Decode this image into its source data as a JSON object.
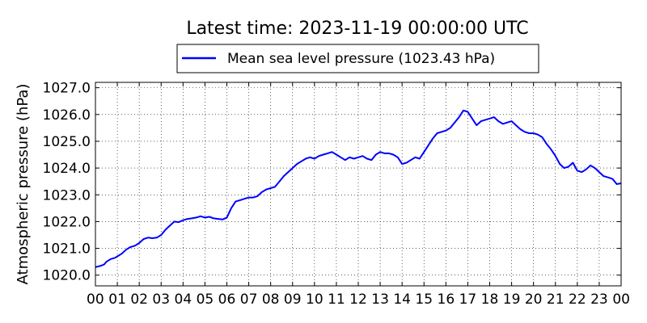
{
  "chart_data": {
    "type": "line",
    "title": "Latest time: 2023-11-19 00:00:00 UTC",
    "ylabel": "Atmospheric pressure (hPa)",
    "xlabel": "",
    "ylim": [
      1019.6,
      1027.2
    ],
    "xlim": [
      0,
      24
    ],
    "grid": true,
    "legend_position": "top-center",
    "x_ticks": [
      {
        "x": 0,
        "label": "00"
      },
      {
        "x": 1,
        "label": "01"
      },
      {
        "x": 2,
        "label": "02"
      },
      {
        "x": 3,
        "label": "03"
      },
      {
        "x": 4,
        "label": "04"
      },
      {
        "x": 5,
        "label": "05"
      },
      {
        "x": 6,
        "label": "06"
      },
      {
        "x": 7,
        "label": "07"
      },
      {
        "x": 8,
        "label": "08"
      },
      {
        "x": 9,
        "label": "09"
      },
      {
        "x": 10,
        "label": "10"
      },
      {
        "x": 11,
        "label": "11"
      },
      {
        "x": 12,
        "label": "12"
      },
      {
        "x": 13,
        "label": "13"
      },
      {
        "x": 14,
        "label": "14"
      },
      {
        "x": 15,
        "label": "15"
      },
      {
        "x": 16,
        "label": "16"
      },
      {
        "x": 17,
        "label": "17"
      },
      {
        "x": 18,
        "label": "18"
      },
      {
        "x": 19,
        "label": "19"
      },
      {
        "x": 20,
        "label": "20"
      },
      {
        "x": 21,
        "label": "21"
      },
      {
        "x": 22,
        "label": "22"
      },
      {
        "x": 23,
        "label": "23"
      },
      {
        "x": 24,
        "label": "00"
      }
    ],
    "y_ticks": [
      {
        "y": 1020.0,
        "label": "1020.0"
      },
      {
        "y": 1021.0,
        "label": "1021.0"
      },
      {
        "y": 1022.0,
        "label": "1022.0"
      },
      {
        "y": 1023.0,
        "label": "1023.0"
      },
      {
        "y": 1024.0,
        "label": "1024.0"
      },
      {
        "y": 1025.0,
        "label": "1025.0"
      },
      {
        "y": 1026.0,
        "label": "1026.0"
      },
      {
        "y": 1027.0,
        "label": "1027.0"
      }
    ],
    "series": [
      {
        "name": "Mean sea level pressure (1023.43 hPa)",
        "color": "#0000ff",
        "x": [
          0.0,
          0.25,
          0.4,
          0.5,
          0.7,
          0.9,
          1.0,
          1.2,
          1.4,
          1.6,
          1.8,
          2.0,
          2.2,
          2.4,
          2.6,
          2.8,
          3.0,
          3.2,
          3.4,
          3.6,
          3.8,
          4.0,
          4.2,
          4.4,
          4.6,
          4.8,
          5.0,
          5.2,
          5.4,
          5.6,
          5.8,
          6.0,
          6.2,
          6.4,
          6.6,
          6.8,
          7.0,
          7.2,
          7.4,
          7.6,
          7.8,
          8.0,
          8.2,
          8.4,
          8.6,
          8.8,
          9.0,
          9.2,
          9.4,
          9.6,
          9.8,
          10.0,
          10.2,
          10.4,
          10.6,
          10.8,
          11.0,
          11.2,
          11.4,
          11.6,
          11.8,
          12.0,
          12.2,
          12.4,
          12.6,
          12.8,
          13.0,
          13.2,
          13.4,
          13.6,
          13.8,
          14.0,
          14.2,
          14.4,
          14.6,
          14.8,
          15.0,
          15.2,
          15.4,
          15.6,
          15.8,
          16.0,
          16.2,
          16.4,
          16.6,
          16.8,
          17.0,
          17.2,
          17.4,
          17.6,
          17.8,
          18.0,
          18.2,
          18.4,
          18.6,
          18.8,
          19.0,
          19.2,
          19.4,
          19.6,
          19.8,
          20.0,
          20.2,
          20.4,
          20.6,
          20.8,
          21.0,
          21.2,
          21.4,
          21.6,
          21.8,
          22.0,
          22.2,
          22.4,
          22.6,
          22.8,
          23.0,
          23.2,
          23.4,
          23.6,
          23.8,
          24.0
        ],
        "values": [
          1020.3,
          1020.35,
          1020.4,
          1020.5,
          1020.6,
          1020.65,
          1020.7,
          1020.8,
          1020.95,
          1021.05,
          1021.1,
          1021.2,
          1021.35,
          1021.4,
          1021.38,
          1021.4,
          1021.5,
          1021.7,
          1021.85,
          1022.0,
          1021.98,
          1022.05,
          1022.1,
          1022.12,
          1022.15,
          1022.2,
          1022.15,
          1022.18,
          1022.12,
          1022.1,
          1022.08,
          1022.15,
          1022.5,
          1022.75,
          1022.8,
          1022.85,
          1022.9,
          1022.9,
          1022.95,
          1023.1,
          1023.2,
          1023.25,
          1023.3,
          1023.5,
          1023.7,
          1023.85,
          1024.0,
          1024.15,
          1024.25,
          1024.35,
          1024.4,
          1024.35,
          1024.45,
          1024.5,
          1024.55,
          1024.6,
          1024.5,
          1024.4,
          1024.3,
          1024.4,
          1024.35,
          1024.4,
          1024.45,
          1024.35,
          1024.3,
          1024.5,
          1024.6,
          1024.55,
          1024.55,
          1024.5,
          1024.4,
          1024.15,
          1024.2,
          1024.3,
          1024.4,
          1024.35,
          1024.6,
          1024.85,
          1025.1,
          1025.3,
          1025.35,
          1025.4,
          1025.5,
          1025.7,
          1025.9,
          1026.15,
          1026.1,
          1025.85,
          1025.6,
          1025.75,
          1025.8,
          1025.85,
          1025.9,
          1025.75,
          1025.65,
          1025.7,
          1025.75,
          1025.6,
          1025.45,
          1025.35,
          1025.3,
          1025.3,
          1025.25,
          1025.15,
          1024.9,
          1024.7,
          1024.45,
          1024.15,
          1024.0,
          1024.05,
          1024.2,
          1023.9,
          1023.85,
          1023.95,
          1024.1,
          1024.0,
          1023.85,
          1023.7,
          1023.65,
          1023.6,
          1023.4,
          1023.43
        ]
      }
    ]
  }
}
